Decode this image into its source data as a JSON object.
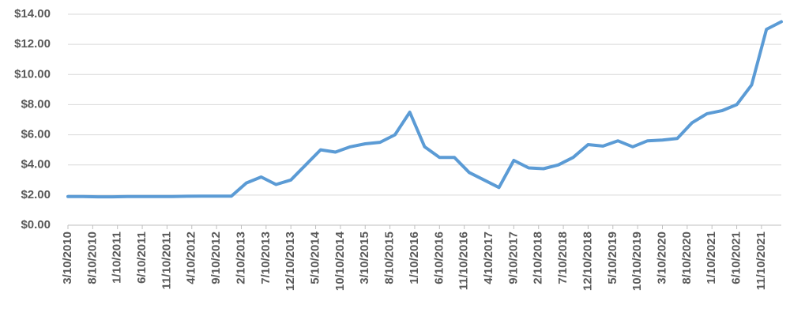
{
  "chart_data": {
    "type": "line",
    "x": [
      "3/10/2010",
      "6/10/2010",
      "9/10/2010",
      "12/10/2010",
      "3/10/2011",
      "6/10/2011",
      "9/10/2011",
      "12/10/2011",
      "3/10/2012",
      "6/10/2012",
      "9/10/2012",
      "12/10/2012",
      "3/10/2013",
      "6/10/2013",
      "9/10/2013",
      "12/10/2013",
      "3/10/2014",
      "6/10/2014",
      "9/10/2014",
      "12/10/2014",
      "3/10/2015",
      "6/10/2015",
      "9/10/2015",
      "12/10/2015",
      "3/10/2016",
      "6/10/2016",
      "9/10/2016",
      "12/10/2016",
      "3/10/2017",
      "6/10/2017",
      "9/10/2017",
      "12/10/2017",
      "3/10/2018",
      "6/10/2018",
      "9/10/2018",
      "12/10/2018",
      "3/10/2019",
      "6/10/2019",
      "9/10/2019",
      "12/10/2019",
      "3/10/2020",
      "6/10/2020",
      "9/10/2020",
      "12/10/2020",
      "3/10/2021",
      "6/10/2021",
      "9/10/2021",
      "12/10/2021",
      "3/10/2022"
    ],
    "values": [
      1.9,
      1.9,
      1.88,
      1.88,
      1.9,
      1.9,
      1.9,
      1.9,
      1.92,
      1.93,
      1.93,
      1.93,
      2.8,
      3.2,
      2.7,
      3.0,
      4.0,
      5.0,
      4.85,
      5.2,
      5.4,
      5.5,
      6.0,
      7.5,
      5.2,
      4.5,
      4.5,
      3.5,
      3.0,
      2.5,
      4.3,
      3.8,
      3.75,
      4.0,
      4.5,
      5.35,
      5.25,
      5.6,
      5.2,
      5.6,
      5.65,
      5.75,
      6.8,
      7.4,
      7.6,
      8.0,
      9.3,
      13.0,
      13.5
    ],
    "color": "#5b9bd5",
    "xlim": [
      "3/10/2010",
      "3/10/2022"
    ],
    "xticks": [
      "3/10/2010",
      "8/10/2010",
      "1/10/2011",
      "6/10/2011",
      "11/10/2011",
      "4/10/2012",
      "9/10/2012",
      "2/10/2013",
      "7/10/2013",
      "12/10/2013",
      "5/10/2014",
      "10/10/2014",
      "3/10/2015",
      "8/10/2015",
      "1/10/2016",
      "6/10/2016",
      "11/10/2016",
      "4/10/2017",
      "9/10/2017",
      "2/10/2018",
      "7/10/2018",
      "12/10/2018",
      "5/10/2019",
      "10/10/2019",
      "3/10/2020",
      "8/10/2020",
      "1/10/2021",
      "6/10/2021",
      "11/10/2021"
    ],
    "ylim": [
      0,
      14
    ],
    "yticks": [
      {
        "value": 0,
        "label": "$0.00"
      },
      {
        "value": 2,
        "label": "$2.00"
      },
      {
        "value": 4,
        "label": "$4.00"
      },
      {
        "value": 6,
        "label": "$6.00"
      },
      {
        "value": 8,
        "label": "$8.00"
      },
      {
        "value": 10,
        "label": "$10.00"
      },
      {
        "value": 12,
        "label": "$12.00"
      },
      {
        "value": 14,
        "label": "$14.00"
      }
    ],
    "grid": true
  }
}
